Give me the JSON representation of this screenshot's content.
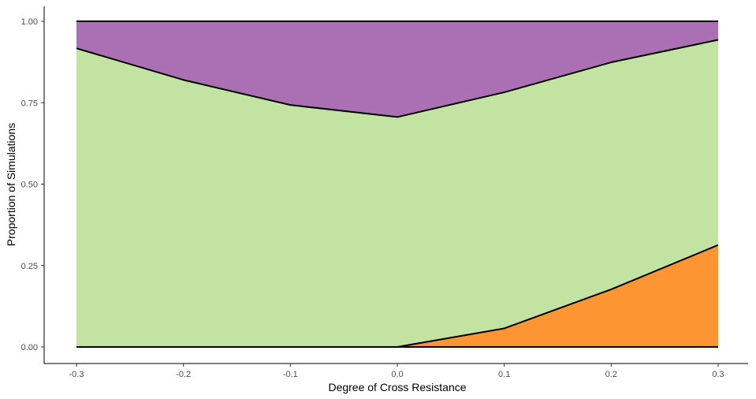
{
  "chart_data": {
    "type": "area",
    "stacked": true,
    "title": "",
    "xlabel": "Degree of Cross Resistance",
    "ylabel": "Proportion of Simulations",
    "x": [
      -0.3,
      -0.2,
      -0.1,
      0.0,
      0.1,
      0.2,
      0.3
    ],
    "xlim": [
      -0.3,
      0.3
    ],
    "ylim": [
      0,
      1
    ],
    "x_ticks": [
      "-0.3",
      "-0.2",
      "-0.1",
      "0.0",
      "0.1",
      "0.2",
      "0.3"
    ],
    "y_ticks": [
      "0.00",
      "0.25",
      "0.50",
      "0.75",
      "1.00"
    ],
    "grid": false,
    "legend": "none",
    "series": [
      {
        "color": "#FD9632",
        "values": [
          0.0,
          0.0,
          0.0,
          0.0,
          0.057,
          0.177,
          0.313
        ]
      },
      {
        "color": "#C2E3A2",
        "values": [
          0.917,
          0.82,
          0.743,
          0.706,
          0.725,
          0.697,
          0.63
        ]
      },
      {
        "color": "#AA70B3",
        "values": [
          0.083,
          0.18,
          0.257,
          0.294,
          0.218,
          0.126,
          0.057
        ]
      }
    ]
  }
}
